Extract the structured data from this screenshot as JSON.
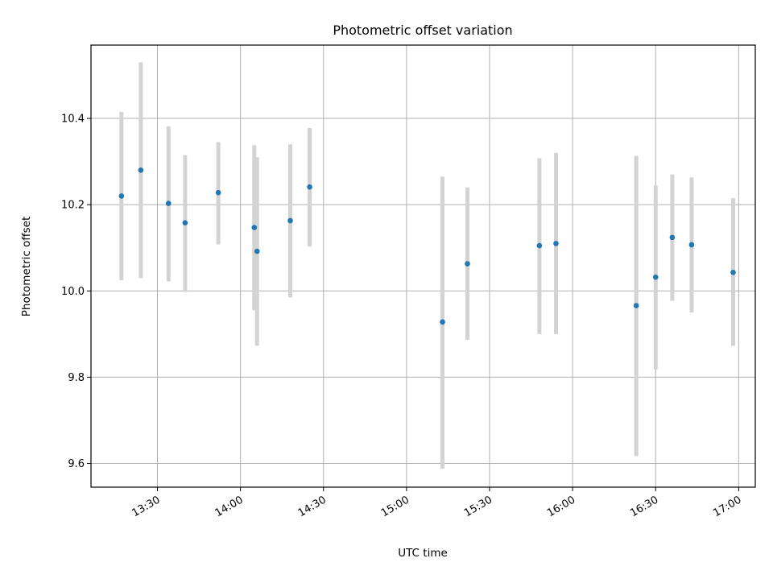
{
  "chart_data": {
    "type": "scatter",
    "title": "Photometric offset variation",
    "xlabel": "UTC time",
    "ylabel": "Photometric offset",
    "x_tick_labels": [
      "13:30",
      "14:00",
      "14:30",
      "15:00",
      "15:30",
      "16:00",
      "16:30",
      "17:00"
    ],
    "x_ticks": [
      "13:30",
      "14:00",
      "14:30",
      "15:00",
      "15:30",
      "16:00",
      "16:30",
      "17:00"
    ],
    "x_range": [
      "13:06",
      "17:06"
    ],
    "y_tick_labels": [
      "9.6",
      "9.8",
      "10.0",
      "10.2",
      "10.4"
    ],
    "y_ticks": [
      9.6,
      9.8,
      10.0,
      10.2,
      10.4
    ],
    "ylim": [
      9.545,
      10.57
    ],
    "grid": true,
    "marker_color": "#1f77b4",
    "errorbar_color": "#d3d3d3",
    "points": [
      {
        "time": "13:17",
        "y": 10.22,
        "low": 10.025,
        "high": 10.415
      },
      {
        "time": "13:24",
        "y": 10.28,
        "low": 10.03,
        "high": 10.53
      },
      {
        "time": "13:34",
        "y": 10.203,
        "low": 10.022,
        "high": 10.382
      },
      {
        "time": "13:40",
        "y": 10.158,
        "low": 9.998,
        "high": 10.315
      },
      {
        "time": "13:52",
        "y": 10.228,
        "low": 10.108,
        "high": 10.345
      },
      {
        "time": "14:05",
        "y": 10.147,
        "low": 9.955,
        "high": 10.338
      },
      {
        "time": "14:06",
        "y": 10.092,
        "low": 9.873,
        "high": 10.31
      },
      {
        "time": "14:18",
        "y": 10.163,
        "low": 9.985,
        "high": 10.34
      },
      {
        "time": "14:25",
        "y": 10.241,
        "low": 10.103,
        "high": 10.378
      },
      {
        "time": "15:13",
        "y": 9.928,
        "low": 9.588,
        "high": 10.265
      },
      {
        "time": "15:22",
        "y": 10.063,
        "low": 9.887,
        "high": 10.24
      },
      {
        "time": "15:48",
        "y": 10.105,
        "low": 9.9,
        "high": 10.308
      },
      {
        "time": "15:54",
        "y": 10.11,
        "low": 9.9,
        "high": 10.32
      },
      {
        "time": "16:23",
        "y": 9.966,
        "low": 9.617,
        "high": 10.313
      },
      {
        "time": "16:30",
        "y": 10.032,
        "low": 9.818,
        "high": 10.245
      },
      {
        "time": "16:36",
        "y": 10.124,
        "low": 9.977,
        "high": 10.27
      },
      {
        "time": "16:43",
        "y": 10.107,
        "low": 9.95,
        "high": 10.263
      },
      {
        "time": "16:58",
        "y": 10.043,
        "low": 9.873,
        "high": 10.215
      }
    ]
  }
}
